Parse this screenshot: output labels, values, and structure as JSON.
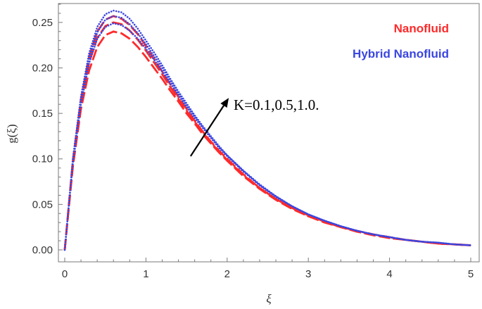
{
  "chart_data": {
    "type": "line",
    "title": "",
    "xlabel": "ξ",
    "ylabel": "g(ξ)",
    "xlim": [
      0,
      5
    ],
    "ylim": [
      0,
      0.27
    ],
    "grid": false,
    "legend_position": "top-right",
    "x_ticks": [
      "0",
      "1",
      "2",
      "3",
      "4",
      "5"
    ],
    "y_ticks": [
      "0.00",
      "0.05",
      "0.10",
      "0.15",
      "0.20",
      "0.25"
    ],
    "legend": [
      {
        "label": "Nanofluid",
        "color": "#ff2a2a"
      },
      {
        "label": "Hybrid Nanofluid",
        "color": "#3a46e0"
      }
    ],
    "annotation": {
      "text": "K=0.1,0.5,1.0.",
      "from": [
        1.55,
        0.103
      ],
      "to": [
        2.02,
        0.167
      ]
    },
    "x": [
      0,
      0.1,
      0.2,
      0.3,
      0.4,
      0.5,
      0.6,
      0.7,
      0.8,
      0.9,
      1.0,
      1.1,
      1.2,
      1.3,
      1.4,
      1.5,
      1.6,
      1.7,
      1.8,
      1.9,
      2.0,
      2.2,
      2.4,
      2.6,
      2.8,
      3.0,
      3.2,
      3.4,
      3.6,
      3.8,
      4.0,
      4.2,
      4.4,
      4.6,
      4.8,
      5.0
    ],
    "series": [
      {
        "group": "Nanofluid",
        "style": "dashed",
        "color": "#ff2a2a",
        "values": [
          0,
          0.091,
          0.155,
          0.197,
          0.223,
          0.236,
          0.24,
          0.238,
          0.232,
          0.223,
          0.212,
          0.2,
          0.188,
          0.175,
          0.163,
          0.15,
          0.139,
          0.127,
          0.117,
          0.107,
          0.098,
          0.081,
          0.067,
          0.055,
          0.045,
          0.037,
          0.03,
          0.025,
          0.02,
          0.016,
          0.013,
          0.011,
          0.009,
          0.007,
          0.006,
          0.005
        ]
      },
      {
        "group": "Nanofluid",
        "style": "dashed",
        "color": "#ff2a2a",
        "values": [
          0,
          0.095,
          0.161,
          0.206,
          0.233,
          0.246,
          0.25,
          0.248,
          0.241,
          0.231,
          0.219,
          0.206,
          0.193,
          0.179,
          0.166,
          0.153,
          0.141,
          0.129,
          0.118,
          0.108,
          0.099,
          0.082,
          0.068,
          0.056,
          0.046,
          0.037,
          0.031,
          0.025,
          0.02,
          0.017,
          0.013,
          0.011,
          0.009,
          0.007,
          0.006,
          0.005
        ]
      },
      {
        "group": "Nanofluid",
        "style": "dashed",
        "color": "#ff2a2a",
        "values": [
          0,
          0.098,
          0.166,
          0.212,
          0.24,
          0.253,
          0.257,
          0.254,
          0.247,
          0.237,
          0.224,
          0.21,
          0.196,
          0.182,
          0.168,
          0.155,
          0.142,
          0.13,
          0.119,
          0.109,
          0.1,
          0.083,
          0.068,
          0.056,
          0.046,
          0.038,
          0.031,
          0.025,
          0.021,
          0.017,
          0.014,
          0.011,
          0.009,
          0.007,
          0.006,
          0.005
        ]
      },
      {
        "group": "Hybrid Nanofluid",
        "style": "dotted",
        "color": "#3a46e0",
        "values": [
          0,
          0.094,
          0.16,
          0.205,
          0.232,
          0.245,
          0.249,
          0.247,
          0.241,
          0.232,
          0.221,
          0.209,
          0.196,
          0.183,
          0.17,
          0.157,
          0.145,
          0.134,
          0.123,
          0.112,
          0.103,
          0.086,
          0.071,
          0.058,
          0.048,
          0.039,
          0.032,
          0.026,
          0.021,
          0.017,
          0.014,
          0.011,
          0.009,
          0.008,
          0.006,
          0.005
        ]
      },
      {
        "group": "Hybrid Nanofluid",
        "style": "dotted",
        "color": "#3a46e0",
        "values": [
          0,
          0.097,
          0.165,
          0.211,
          0.239,
          0.253,
          0.257,
          0.255,
          0.248,
          0.238,
          0.226,
          0.213,
          0.2,
          0.186,
          0.172,
          0.159,
          0.147,
          0.135,
          0.124,
          0.113,
          0.104,
          0.087,
          0.071,
          0.059,
          0.048,
          0.039,
          0.032,
          0.026,
          0.021,
          0.017,
          0.014,
          0.011,
          0.009,
          0.008,
          0.006,
          0.005
        ]
      },
      {
        "group": "Hybrid Nanofluid",
        "style": "dotted",
        "color": "#3a46e0",
        "values": [
          0,
          0.1,
          0.169,
          0.216,
          0.245,
          0.259,
          0.263,
          0.261,
          0.254,
          0.243,
          0.23,
          0.217,
          0.203,
          0.188,
          0.174,
          0.161,
          0.148,
          0.136,
          0.125,
          0.114,
          0.104,
          0.087,
          0.072,
          0.059,
          0.048,
          0.039,
          0.032,
          0.026,
          0.021,
          0.017,
          0.014,
          0.011,
          0.009,
          0.008,
          0.006,
          0.005
        ]
      }
    ]
  }
}
